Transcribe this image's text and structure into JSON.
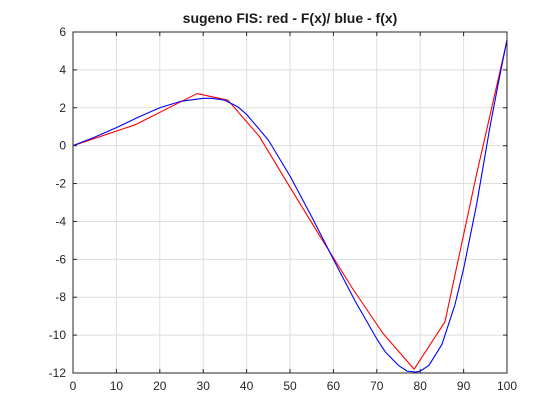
{
  "chart_data": {
    "type": "line",
    "title": "sugeno FIS: red - F(x)/ blue - f(x)",
    "xlabel": "",
    "ylabel": "",
    "xlim": [
      0,
      100
    ],
    "ylim": [
      -12,
      6
    ],
    "xticks": [
      0,
      10,
      20,
      30,
      40,
      50,
      60,
      70,
      80,
      90,
      100
    ],
    "yticks": [
      6,
      4,
      2,
      0,
      -2,
      -4,
      -6,
      -8,
      -10,
      -12
    ],
    "grid": true,
    "series": [
      {
        "color": "#ff0000",
        "x": [
          0,
          14.3,
          28.6,
          35.7,
          42.9,
          50,
          57.1,
          64.3,
          71.4,
          78.6,
          85.7,
          92.9,
          100
        ],
        "y": [
          0,
          1.1,
          2.75,
          2.4,
          0.5,
          -2.2,
          -4.85,
          -7.5,
          -9.9,
          -11.8,
          -9.3,
          -1.6,
          5.55
        ]
      },
      {
        "color": "#0000ff",
        "x": [
          0,
          5,
          10,
          15,
          20,
          25,
          30,
          32,
          35,
          38,
          40,
          45,
          50,
          55,
          60,
          65,
          70,
          72,
          75,
          77,
          79,
          80,
          82,
          85,
          88,
          90,
          93,
          96,
          98,
          100
        ],
        "y": [
          0,
          0.45,
          0.95,
          1.5,
          2.0,
          2.35,
          2.5,
          2.5,
          2.4,
          2.05,
          1.65,
          0.3,
          -1.6,
          -3.75,
          -6.0,
          -8.2,
          -10.2,
          -10.9,
          -11.6,
          -11.9,
          -11.95,
          -11.9,
          -11.6,
          -10.5,
          -8.4,
          -6.5,
          -3.1,
          0.9,
          3.3,
          5.6
        ]
      }
    ]
  }
}
